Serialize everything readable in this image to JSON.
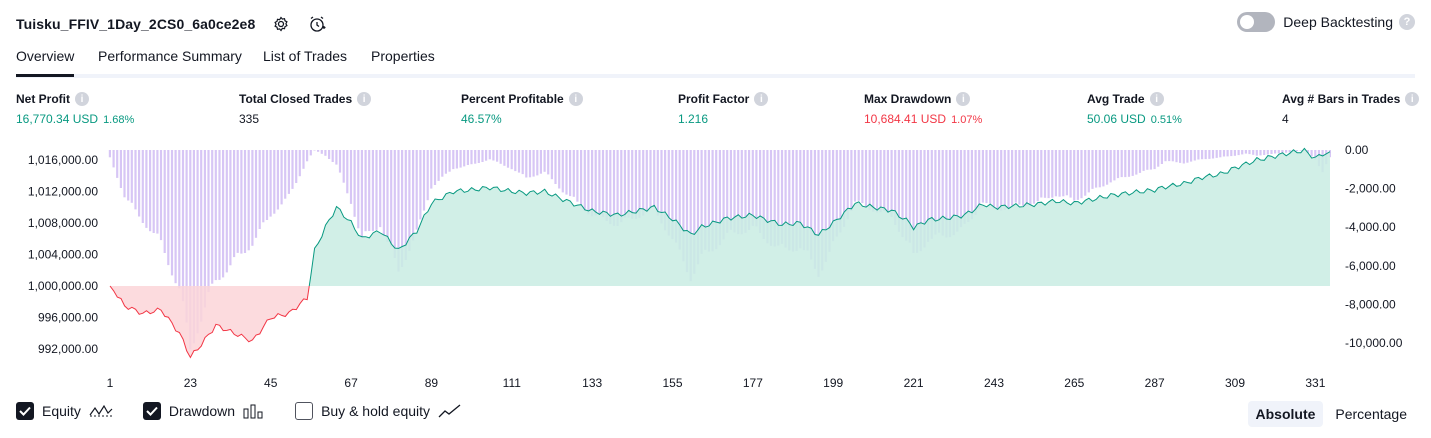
{
  "header": {
    "title": "Tuisku_FFIV_1Day_2CS0_6a0ce2e8",
    "icons": [
      "settings-icon",
      "add-alert-icon"
    ]
  },
  "deep_backtesting": {
    "label": "Deep Backtesting",
    "enabled": false
  },
  "tabs": [
    {
      "label": "Overview",
      "active": true
    },
    {
      "label": "Performance Summary",
      "active": false
    },
    {
      "label": "List of Trades",
      "active": false
    },
    {
      "label": "Properties",
      "active": false
    }
  ],
  "metrics": [
    {
      "label": "Net Profit",
      "value": "16,770.34 USD",
      "pct": "1.68%",
      "color": "green"
    },
    {
      "label": "Total Closed Trades",
      "value": "335",
      "pct": "",
      "color": "dark"
    },
    {
      "label": "Percent Profitable",
      "value": "46.57%",
      "pct": "",
      "color": "green"
    },
    {
      "label": "Profit Factor",
      "value": "1.216",
      "pct": "",
      "color": "green"
    },
    {
      "label": "Max Drawdown",
      "value": "10,684.41 USD",
      "pct": "1.07%",
      "color": "red"
    },
    {
      "label": "Avg Trade",
      "value": "50.06 USD",
      "pct": "0.51%",
      "color": "green"
    },
    {
      "label": "Avg # Bars in Trades",
      "value": "4",
      "pct": "",
      "color": "dark"
    }
  ],
  "legend": {
    "equity": {
      "label": "Equity",
      "checked": true
    },
    "drawdown": {
      "label": "Drawdown",
      "checked": true
    },
    "buyhold": {
      "label": "Buy & hold equity",
      "checked": false
    }
  },
  "mode": {
    "absolute": "Absolute",
    "percentage": "Percentage",
    "selected": "absolute"
  },
  "chart_data": {
    "type": "line",
    "x_ticks": [
      "1",
      "23",
      "45",
      "67",
      "89",
      "111",
      "133",
      "155",
      "177",
      "199",
      "221",
      "243",
      "265",
      "287",
      "309",
      "331"
    ],
    "x_range": [
      1,
      335
    ],
    "left_axis": {
      "ticks": [
        "1,016,000.00",
        "1,012,000.00",
        "1,008,000.00",
        "1,004,000.00",
        "1,000,000.00",
        "996,000.00",
        "992,000.00"
      ],
      "tick_values": [
        1016000,
        1012000,
        1008000,
        1004000,
        1000000,
        996000,
        992000
      ],
      "baseline": 1000000
    },
    "right_axis": {
      "ticks": [
        "0.00",
        "-2,000.00",
        "-4,000.00",
        "-6,000.00",
        "-8,000.00",
        "-10,000.00"
      ],
      "tick_values": [
        0,
        -2000,
        -4000,
        -6000,
        -8000,
        -10000
      ]
    },
    "colors": {
      "equity_line": "#089981",
      "equity_fill": "#c9ece3",
      "loss_line": "#f23645",
      "loss_fill": "#fcd5d8",
      "drawdown": "#d7c6f5"
    },
    "series": [
      {
        "name": "Equity",
        "x": [
          1,
          5,
          10,
          15,
          20,
          23,
          25,
          30,
          35,
          40,
          45,
          50,
          55,
          57,
          60,
          63,
          67,
          70,
          75,
          80,
          85,
          89,
          95,
          100,
          105,
          111,
          115,
          120,
          125,
          133,
          140,
          145,
          150,
          155,
          160,
          163,
          165,
          170,
          177,
          180,
          185,
          190,
          195,
          199,
          205,
          210,
          215,
          220,
          221,
          225,
          230,
          235,
          240,
          243,
          250,
          255,
          260,
          265,
          270,
          275,
          280,
          287,
          290,
          295,
          300,
          305,
          309,
          312,
          315,
          320,
          325,
          328,
          331,
          333,
          335
        ],
        "values": [
          1000000,
          997500,
          996500,
          997000,
          994000,
          991000,
          992000,
          995000,
          994000,
          993000,
          996000,
          996500,
          998500,
          1004500,
          1007500,
          1010000,
          1008000,
          1006000,
          1007000,
          1004500,
          1007000,
          1010500,
          1012000,
          1012200,
          1012500,
          1012000,
          1011800,
          1012000,
          1011000,
          1009500,
          1009000,
          1009500,
          1010000,
          1008500,
          1006500,
          1007500,
          1007800,
          1008600,
          1009000,
          1008500,
          1007800,
          1008000,
          1006500,
          1008000,
          1010500,
          1010000,
          1009600,
          1008000,
          1007400,
          1008400,
          1008600,
          1009000,
          1010400,
          1010000,
          1010200,
          1010400,
          1010800,
          1010500,
          1011000,
          1011500,
          1011800,
          1012200,
          1012600,
          1013000,
          1013800,
          1014200,
          1015000,
          1015500,
          1016000,
          1016500,
          1017000,
          1017200,
          1016200,
          1016800,
          1016770
        ]
      },
      {
        "name": "Drawdown",
        "x": [
          1,
          5,
          10,
          15,
          20,
          23,
          25,
          30,
          35,
          40,
          45,
          50,
          55,
          57,
          60,
          63,
          67,
          70,
          75,
          80,
          85,
          89,
          95,
          100,
          105,
          111,
          115,
          120,
          125,
          133,
          140,
          145,
          150,
          155,
          160,
          163,
          165,
          170,
          177,
          180,
          185,
          190,
          195,
          199,
          205,
          210,
          215,
          220,
          221,
          225,
          230,
          235,
          240,
          243,
          250,
          255,
          260,
          265,
          270,
          275,
          280,
          287,
          290,
          295,
          300,
          305,
          309,
          312,
          315,
          320,
          325,
          328,
          331,
          333,
          335
        ],
        "values": [
          -400,
          -2500,
          -3800,
          -5000,
          -7500,
          -10684,
          -9500,
          -7000,
          -6000,
          -5000,
          -3500,
          -2500,
          -600,
          0,
          -300,
          -800,
          -2800,
          -4800,
          -4000,
          -6500,
          -4500,
          -2000,
          -1000,
          -800,
          -500,
          -1000,
          -1500,
          -1200,
          -2200,
          -3500,
          -4000,
          -3600,
          -3200,
          -4800,
          -6800,
          -5800,
          -5500,
          -4600,
          -4200,
          -4700,
          -5400,
          -5200,
          -6600,
          -5200,
          -2800,
          -3200,
          -3600,
          -5200,
          -5800,
          -4800,
          -4600,
          -4200,
          -2800,
          -3200,
          -3000,
          -2800,
          -2400,
          -2700,
          -2200,
          -1700,
          -1400,
          -1000,
          -600,
          -700,
          -500,
          -400,
          -300,
          -200,
          -300,
          -200,
          -100,
          0,
          -500,
          -1200,
          -400
        ]
      }
    ]
  }
}
